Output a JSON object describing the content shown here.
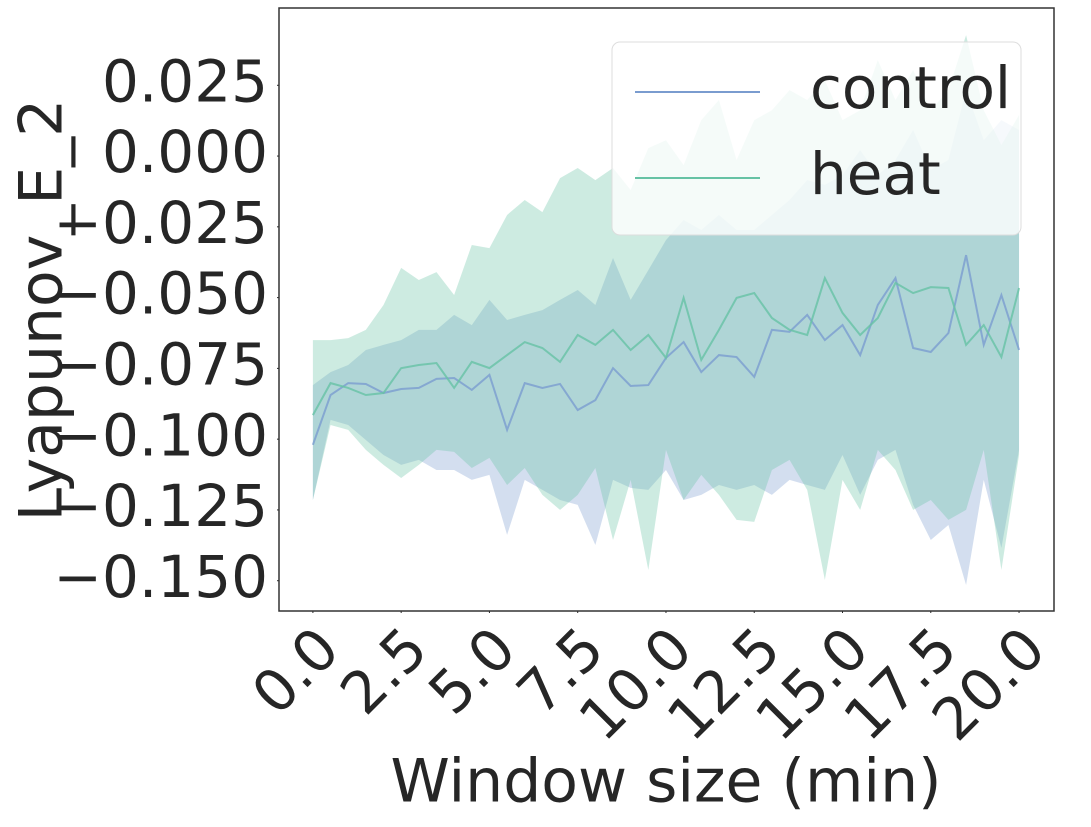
{
  "chart_data": {
    "type": "line",
    "xlabel": "Window size (min)",
    "ylabel": "Lyapunov_E_2",
    "x": [
      0,
      0.5,
      1,
      1.5,
      2,
      2.5,
      3,
      3.5,
      4,
      4.5,
      5,
      5.5,
      6,
      6.5,
      7,
      7.5,
      8,
      8.5,
      9,
      9.5,
      10,
      10.5,
      11,
      11.5,
      12,
      12.5,
      13,
      13.5,
      14,
      14.5,
      15,
      15.5,
      16,
      16.5,
      17,
      17.5,
      18,
      18.5,
      19,
      19.5,
      20
    ],
    "series": [
      {
        "name": "control",
        "color": "#7a9ccf",
        "values": [
          -0.102,
          -0.0844,
          -0.0802,
          -0.0805,
          -0.0837,
          -0.0823,
          -0.0819,
          -0.0787,
          -0.0784,
          -0.0826,
          -0.0773,
          -0.0967,
          -0.0802,
          -0.0819,
          -0.0805,
          -0.0897,
          -0.0862,
          -0.0749,
          -0.0812,
          -0.0809,
          -0.0713,
          -0.0657,
          -0.0763,
          -0.0703,
          -0.071,
          -0.078,
          -0.0614,
          -0.0621,
          -0.0561,
          -0.065,
          -0.0597,
          -0.0703,
          -0.0526,
          -0.0431,
          -0.0678,
          -0.0692,
          -0.0625,
          -0.035,
          -0.0667,
          -0.0491,
          -0.0685
        ],
        "upper": [
          -0.0809,
          -0.0763,
          -0.0738,
          -0.0685,
          -0.0667,
          -0.065,
          -0.0614,
          -0.0614,
          -0.0561,
          -0.0597,
          -0.0508,
          -0.0579,
          -0.0561,
          -0.0544,
          -0.0508,
          -0.0473,
          -0.0526,
          -0.036,
          -0.0508,
          -0.0403,
          -0.0297,
          -0.0226,
          -0.0261,
          -0.0208,
          -0.0261,
          -0.0261,
          -0.0208,
          -0.0155,
          -0.0085,
          -0.0102,
          -0.0067,
          0.0021,
          -0.0067,
          -0.0014,
          0.0092,
          -0.0049,
          -0.0014,
          0.0233,
          0.0056,
          0.0127,
          0.0092
        ],
        "lower": [
          -0.1215,
          -0.0932,
          -0.095,
          -0.1003,
          -0.1056,
          -0.1091,
          -0.1073,
          -0.1109,
          -0.1109,
          -0.1144,
          -0.1126,
          -0.1338,
          -0.1144,
          -0.1179,
          -0.1215,
          -0.1232,
          -0.1374,
          -0.1144,
          -0.1172,
          -0.1179,
          -0.1109,
          -0.1215,
          -0.1197,
          -0.1162,
          -0.1179,
          -0.1162,
          -0.1197,
          -0.1144,
          -0.1162,
          -0.1179,
          -0.1056,
          -0.1197,
          -0.1073,
          -0.1038,
          -0.1232,
          -0.1356,
          -0.1303,
          -0.1515,
          -0.1144,
          -0.1384,
          -0.1038
        ]
      },
      {
        "name": "heat",
        "color": "#66c2a5",
        "values": [
          -0.0915,
          -0.0802,
          -0.0819,
          -0.0844,
          -0.0837,
          -0.0749,
          -0.0738,
          -0.0731,
          -0.0819,
          -0.0727,
          -0.0749,
          -0.0703,
          -0.0657,
          -0.0678,
          -0.0727,
          -0.0632,
          -0.0667,
          -0.0614,
          -0.0685,
          -0.0632,
          -0.0713,
          -0.0501,
          -0.072,
          -0.0614,
          -0.0501,
          -0.0484,
          -0.0572,
          -0.0614,
          -0.0632,
          -0.0431,
          -0.0554,
          -0.0632,
          -0.0572,
          -0.0448,
          -0.0484,
          -0.0463,
          -0.0466,
          -0.0667,
          -0.0597,
          -0.071,
          -0.0466
        ],
        "upper": [
          -0.065,
          -0.065,
          -0.0643,
          -0.0614,
          -0.0526,
          -0.0395,
          -0.0438,
          -0.041,
          -0.0491,
          -0.0314,
          -0.0325,
          -0.0208,
          -0.0155,
          -0.0198,
          -0.0078,
          -0.0042,
          -0.0085,
          -0.0042,
          -0.012,
          0.0028,
          0.0056,
          -0.0032,
          0.0127,
          0.0198,
          -0.0014,
          0.0127,
          0.0162,
          0.0233,
          0.0198,
          0.0268,
          0.0127,
          0.0162,
          0.0339,
          0.0198,
          0.0304,
          0.0162,
          0.0233,
          0.0427,
          0.0162,
          0.0039,
          0.0145
        ],
        "lower": [
          -0.1215,
          -0.095,
          -0.0967,
          -0.1038,
          -0.1091,
          -0.1137,
          -0.1091,
          -0.1038,
          -0.1045,
          -0.1102,
          -0.1066,
          -0.1162,
          -0.1102,
          -0.1197,
          -0.125,
          -0.1197,
          -0.1102,
          -0.1356,
          -0.1144,
          -0.1462,
          -0.1038,
          -0.1215,
          -0.1126,
          -0.1197,
          -0.1285,
          -0.1292,
          -0.1109,
          -0.1073,
          -0.1179,
          -0.1497,
          -0.1144,
          -0.125,
          -0.1038,
          -0.1109,
          -0.125,
          -0.1215,
          -0.1285,
          -0.125,
          -0.1038,
          -0.1462,
          -0.1056
        ]
      }
    ],
    "xlim": [
      -0.96,
      20.99
    ],
    "ylim": [
      -0.1607,
      0.0523
    ],
    "xticks": [
      {
        "value": 0,
        "label": "0.0"
      },
      {
        "value": 2.5,
        "label": "2.5"
      },
      {
        "value": 5,
        "label": "5.0"
      },
      {
        "value": 7.5,
        "label": "7.5"
      },
      {
        "value": 10,
        "label": "10.0"
      },
      {
        "value": 12.5,
        "label": "12.5"
      },
      {
        "value": 15,
        "label": "15.0"
      },
      {
        "value": 17.5,
        "label": "17.5"
      },
      {
        "value": 20,
        "label": "20.0"
      }
    ],
    "yticks": [
      {
        "value": -0.15,
        "label": "−0.150"
      },
      {
        "value": -0.125,
        "label": "−0.125"
      },
      {
        "value": -0.1,
        "label": "−0.100"
      },
      {
        "value": -0.075,
        "label": "−0.075"
      },
      {
        "value": -0.05,
        "label": "−0.050"
      },
      {
        "value": -0.025,
        "label": "−0.025"
      },
      {
        "value": 0,
        "label": "0.000"
      },
      {
        "value": 0.025,
        "label": "0.025"
      }
    ],
    "grid": false,
    "legend": "upper right"
  }
}
